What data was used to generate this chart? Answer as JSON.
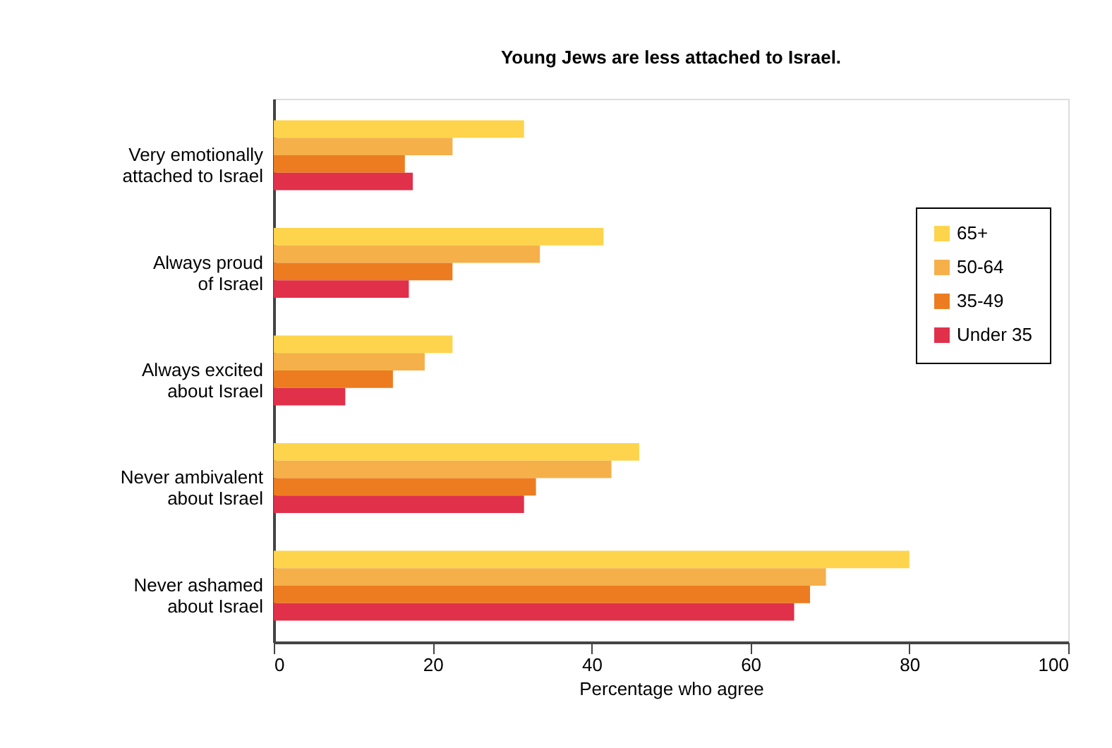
{
  "chart_data": {
    "type": "bar",
    "orientation": "horizontal",
    "title": "Young Jews are less attached to Israel.",
    "xlabel": "Percentage who agree",
    "categories": [
      "Very emotionally attached to Israel",
      "Always proud of Israel",
      "Always excited about Israel",
      "Never ambivalent about Israel",
      "Never ashamed about Israel"
    ],
    "series": [
      {
        "name": "65+",
        "color": "#fdd44b",
        "values": [
          31.5,
          41.5,
          22.5,
          46,
          80
        ]
      },
      {
        "name": "50-64",
        "color": "#f5b04a",
        "values": [
          22.5,
          33.5,
          19,
          42.5,
          69.5
        ]
      },
      {
        "name": "35-49",
        "color": "#ec7c1f",
        "values": [
          16.5,
          22.5,
          15,
          33,
          67.5
        ]
      },
      {
        "name": "Under 35",
        "color": "#e0304a",
        "values": [
          17.5,
          17,
          9,
          31.5,
          65.5
        ]
      }
    ],
    "xlim": [
      0,
      100
    ],
    "xticks": [
      0,
      20,
      40,
      60,
      80,
      100
    ],
    "grid": false,
    "legend": "right"
  }
}
